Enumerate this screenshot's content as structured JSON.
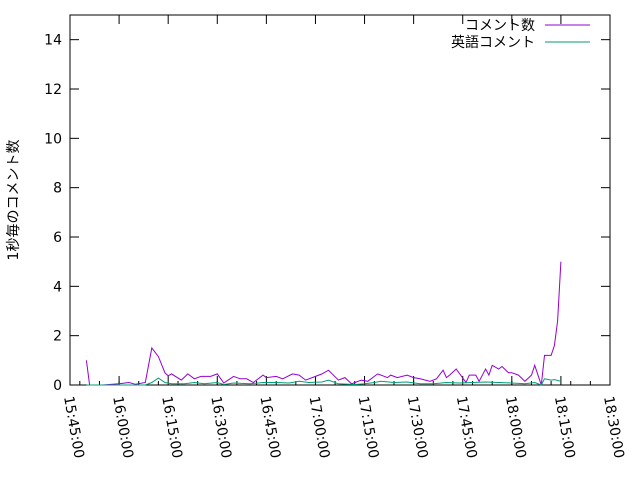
{
  "chart_data": {
    "type": "line",
    "title": "",
    "xlabel": "",
    "ylabel": "1秒毎のコメント数",
    "xlim": [
      "15:45:00",
      "18:30:00"
    ],
    "ylim": [
      0,
      15
    ],
    "xticks": [
      "15:45:00",
      "16:00:00",
      "16:15:00",
      "16:30:00",
      "16:45:00",
      "17:00:00",
      "17:15:00",
      "17:30:00",
      "17:45:00",
      "18:00:00",
      "18:15:00",
      "18:30:00"
    ],
    "yticks": [
      "0",
      "2",
      "4",
      "6",
      "8",
      "10",
      "12",
      "14"
    ],
    "grid": false,
    "legend_position": "top-right",
    "series": [
      {
        "name": "コメント数",
        "color": "#9400d3",
        "points": [
          [
            "15:50",
            1.0
          ],
          [
            "15:51",
            0
          ],
          [
            "15:55",
            0
          ],
          [
            "16:00",
            0.05
          ],
          [
            "16:03",
            0.1
          ],
          [
            "16:05",
            0.03
          ],
          [
            "16:08",
            0.1
          ],
          [
            "16:10",
            1.5
          ],
          [
            "16:12",
            1.15
          ],
          [
            "16:14",
            0.5
          ],
          [
            "16:15",
            0.37
          ],
          [
            "16:16",
            0.45
          ],
          [
            "16:19",
            0.2
          ],
          [
            "16:21",
            0.45
          ],
          [
            "16:23",
            0.25
          ],
          [
            "16:25",
            0.35
          ],
          [
            "16:28",
            0.35
          ],
          [
            "16:30",
            0.45
          ],
          [
            "16:32",
            0.08
          ],
          [
            "16:35",
            0.35
          ],
          [
            "16:37",
            0.25
          ],
          [
            "16:39",
            0.25
          ],
          [
            "16:41",
            0.1
          ],
          [
            "16:44",
            0.4
          ],
          [
            "16:45",
            0.3
          ],
          [
            "16:48",
            0.35
          ],
          [
            "16:50",
            0.25
          ],
          [
            "16:53",
            0.45
          ],
          [
            "16:55",
            0.4
          ],
          [
            "16:57",
            0.2
          ],
          [
            "17:00",
            0.35
          ],
          [
            "17:02",
            0.45
          ],
          [
            "17:04",
            0.6
          ],
          [
            "17:07",
            0.2
          ],
          [
            "17:09",
            0.3
          ],
          [
            "17:11",
            0.05
          ],
          [
            "17:14",
            0.2
          ],
          [
            "17:16",
            0.15
          ],
          [
            "17:19",
            0.45
          ],
          [
            "17:20",
            0.4
          ],
          [
            "17:22",
            0.3
          ],
          [
            "17:23",
            0.4
          ],
          [
            "17:25",
            0.3
          ],
          [
            "17:28",
            0.4
          ],
          [
            "17:30",
            0.3
          ],
          [
            "17:32",
            0.25
          ],
          [
            "17:35",
            0.15
          ],
          [
            "17:37",
            0.25
          ],
          [
            "17:39",
            0.6
          ],
          [
            "17:40",
            0.3
          ],
          [
            "17:41",
            0.4
          ],
          [
            "17:43",
            0.65
          ],
          [
            "17:46",
            0.1
          ],
          [
            "17:47",
            0.4
          ],
          [
            "17:49",
            0.4
          ],
          [
            "17:50",
            0.15
          ],
          [
            "17:52",
            0.65
          ],
          [
            "17:53",
            0.4
          ],
          [
            "17:54",
            0.8
          ],
          [
            "17:56",
            0.65
          ],
          [
            "17:57",
            0.75
          ],
          [
            "17:59",
            0.5
          ],
          [
            "18:00",
            0.5
          ],
          [
            "18:02",
            0.4
          ],
          [
            "18:04",
            0.15
          ],
          [
            "18:06",
            0.4
          ],
          [
            "18:07",
            0.8
          ],
          [
            "18:09",
            0
          ],
          [
            "18:10",
            1.2
          ],
          [
            "18:12",
            1.2
          ],
          [
            "18:13",
            1.6
          ],
          [
            "18:14",
            2.6
          ],
          [
            "18:15",
            5.0
          ]
        ]
      },
      {
        "name": "英語コメント",
        "color": "#009e73",
        "points": [
          [
            "15:50",
            0
          ],
          [
            "16:08",
            0
          ],
          [
            "16:10",
            0.1
          ],
          [
            "16:12",
            0.28
          ],
          [
            "16:14",
            0.1
          ],
          [
            "16:16",
            0.05
          ],
          [
            "16:20",
            0.05
          ],
          [
            "16:23",
            0.1
          ],
          [
            "16:26",
            0.05
          ],
          [
            "16:30",
            0.1
          ],
          [
            "16:32",
            0.02
          ],
          [
            "16:35",
            0.08
          ],
          [
            "16:40",
            0.05
          ],
          [
            "16:44",
            0.1
          ],
          [
            "16:48",
            0.1
          ],
          [
            "16:52",
            0.08
          ],
          [
            "16:55",
            0.15
          ],
          [
            "16:58",
            0.1
          ],
          [
            "17:02",
            0.12
          ],
          [
            "17:04",
            0.2
          ],
          [
            "17:07",
            0.05
          ],
          [
            "17:12",
            0.02
          ],
          [
            "17:15",
            0.05
          ],
          [
            "17:18",
            0.1
          ],
          [
            "17:20",
            0.15
          ],
          [
            "17:24",
            0.1
          ],
          [
            "17:28",
            0.12
          ],
          [
            "17:32",
            0.05
          ],
          [
            "17:36",
            0.05
          ],
          [
            "17:40",
            0.1
          ],
          [
            "17:44",
            0.08
          ],
          [
            "17:48",
            0.1
          ],
          [
            "17:52",
            0.12
          ],
          [
            "17:56",
            0.1
          ],
          [
            "18:00",
            0.08
          ],
          [
            "18:04",
            0.05
          ],
          [
            "18:07",
            0.1
          ],
          [
            "18:09",
            0
          ],
          [
            "18:10",
            0.25
          ],
          [
            "18:12",
            0.2
          ],
          [
            "18:13",
            0.22
          ],
          [
            "18:15",
            0.15
          ]
        ]
      }
    ]
  }
}
